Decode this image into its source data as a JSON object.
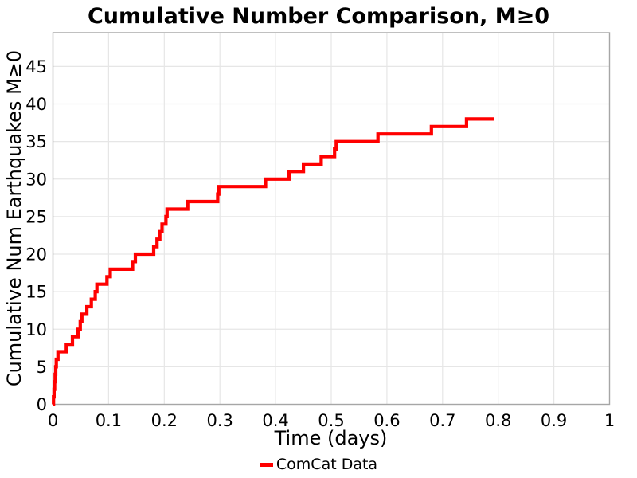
{
  "title": "Cumulative Number Comparison, M≥0",
  "chart_data": {
    "type": "line",
    "subtype": "step-post-cumulative",
    "title": "Cumulative Number Comparison, M≥0",
    "xlabel": "Time (days)",
    "ylabel": "Cumulative Num Earthquakes M≥0",
    "grid": true,
    "legend_position": "bottom-center",
    "legend": [
      {
        "label": "ComCat Data",
        "color": "#ff0000"
      }
    ],
    "xlim": [
      0,
      1
    ],
    "ylim": [
      0,
      49.5
    ],
    "xticks": [
      0,
      0.1,
      0.2,
      0.3,
      0.4,
      0.5,
      0.6,
      0.7,
      0.8,
      0.9,
      1
    ],
    "xtick_labels": [
      "0",
      "0.1",
      "0.2",
      "0.3",
      "0.4",
      "0.5",
      "0.6",
      "0.7",
      "0.8",
      "0.9",
      "1"
    ],
    "yticks": [
      0,
      5,
      10,
      15,
      20,
      25,
      30,
      35,
      40,
      45
    ],
    "ytick_labels": [
      "0",
      "5",
      "10",
      "15",
      "20",
      "25",
      "30",
      "35",
      "40",
      "45"
    ],
    "series": [
      {
        "name": "ComCat Data",
        "color": "#ff0000",
        "line_width": 4.2,
        "start_point": [
          0,
          0
        ],
        "event_times_days": [
          0.001,
          0.002,
          0.003,
          0.004,
          0.005,
          0.006,
          0.009,
          0.024,
          0.035,
          0.045,
          0.049,
          0.052,
          0.061,
          0.069,
          0.076,
          0.079,
          0.097,
          0.103,
          0.143,
          0.148,
          0.181,
          0.187,
          0.192,
          0.196,
          0.203,
          0.205,
          0.242,
          0.296,
          0.298,
          0.382,
          0.424,
          0.45,
          0.482,
          0.506,
          0.509,
          0.584,
          0.68,
          0.743
        ],
        "cumulative_counts": [
          1,
          2,
          3,
          4,
          5,
          6,
          7,
          8,
          9,
          10,
          11,
          12,
          13,
          14,
          15,
          16,
          17,
          18,
          19,
          20,
          21,
          22,
          23,
          24,
          25,
          26,
          27,
          28,
          29,
          30,
          31,
          32,
          33,
          34,
          35,
          36,
          37,
          38
        ],
        "line_end_time_days": 0.793
      }
    ]
  },
  "style": {
    "plot_background": "#ffffff",
    "grid_color": "#e6e6e6",
    "frame_color": "#a6a6a6",
    "text_color": "#000000",
    "accent_red": "#ff0000"
  }
}
